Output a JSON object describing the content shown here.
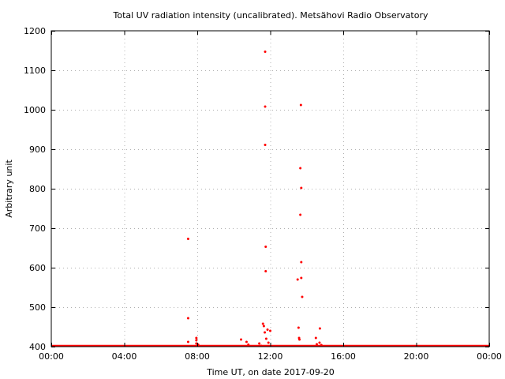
{
  "chart_data": {
    "type": "scatter",
    "title": "Total UV radiation intensity (uncalibrated). Metsähovi Radio Observatory",
    "xlabel": "Time UT, on date 2017-09-20",
    "ylabel": "Arbitrary unit",
    "xlim": [
      0,
      24
    ],
    "ylim": [
      400,
      1200
    ],
    "grid": true,
    "x_ticks": [
      0,
      4,
      8,
      12,
      16,
      20,
      24
    ],
    "x_tick_labels": [
      "00:00",
      "04:00",
      "08:00",
      "12:00",
      "16:00",
      "20:00",
      "00:00"
    ],
    "y_ticks": [
      400,
      500,
      600,
      700,
      800,
      900,
      1000,
      1100,
      1200
    ],
    "y_tick_labels": [
      "400",
      "500",
      "600",
      "700",
      "800",
      "900",
      "1000",
      "1100",
      "1200"
    ],
    "series": [
      {
        "color": "#ff0000",
        "baseline": 400,
        "points": [
          {
            "x": 7.5,
            "y": 673
          },
          {
            "x": 7.5,
            "y": 472
          },
          {
            "x": 7.5,
            "y": 412
          },
          {
            "x": 7.95,
            "y": 422
          },
          {
            "x": 7.95,
            "y": 416
          },
          {
            "x": 7.95,
            "y": 408
          },
          {
            "x": 8.05,
            "y": 405
          },
          {
            "x": 10.4,
            "y": 418
          },
          {
            "x": 10.7,
            "y": 412
          },
          {
            "x": 10.8,
            "y": 405
          },
          {
            "x": 11.4,
            "y": 408
          },
          {
            "x": 11.5,
            "y": 402
          },
          {
            "x": 11.6,
            "y": 458
          },
          {
            "x": 11.65,
            "y": 452
          },
          {
            "x": 11.7,
            "y": 436
          },
          {
            "x": 11.72,
            "y": 1147
          },
          {
            "x": 11.72,
            "y": 1008
          },
          {
            "x": 11.72,
            "y": 911
          },
          {
            "x": 11.75,
            "y": 653
          },
          {
            "x": 11.75,
            "y": 591
          },
          {
            "x": 11.78,
            "y": 420
          },
          {
            "x": 11.85,
            "y": 443
          },
          {
            "x": 11.9,
            "y": 410
          },
          {
            "x": 12.0,
            "y": 440
          },
          {
            "x": 13.5,
            "y": 570
          },
          {
            "x": 13.55,
            "y": 448
          },
          {
            "x": 13.58,
            "y": 422
          },
          {
            "x": 13.6,
            "y": 418
          },
          {
            "x": 13.65,
            "y": 852
          },
          {
            "x": 13.65,
            "y": 734
          },
          {
            "x": 13.68,
            "y": 1012
          },
          {
            "x": 13.7,
            "y": 802
          },
          {
            "x": 13.7,
            "y": 614
          },
          {
            "x": 13.7,
            "y": 574
          },
          {
            "x": 13.75,
            "y": 526
          },
          {
            "x": 14.5,
            "y": 422
          },
          {
            "x": 14.55,
            "y": 406
          },
          {
            "x": 14.7,
            "y": 410
          },
          {
            "x": 14.72,
            "y": 446
          },
          {
            "x": 14.8,
            "y": 404
          }
        ]
      }
    ]
  }
}
